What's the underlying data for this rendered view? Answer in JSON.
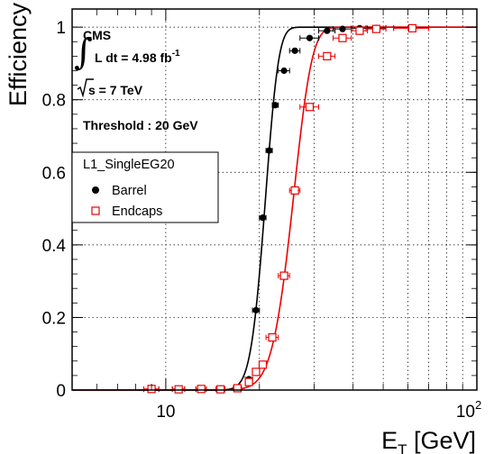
{
  "chart_data": {
    "type": "scatter",
    "xscale": "log",
    "xlim": [
      5,
      100
    ],
    "ylim": [
      0,
      1.05
    ],
    "xlabel_main": "E",
    "xlabel_sub": "T",
    "xlabel_unit": " [GeV]",
    "ylabel": "Efficiency",
    "grid": true,
    "x_ticks": [
      {
        "value": 10,
        "base": "10",
        "exp": ""
      },
      {
        "value": 100,
        "base": "10",
        "exp": "2"
      }
    ],
    "y_ticks": [
      {
        "value": 0,
        "label": "0"
      },
      {
        "value": 0.2,
        "label": "0.2"
      },
      {
        "value": 0.4,
        "label": "0.4"
      },
      {
        "value": 0.6,
        "label": "0.6"
      },
      {
        "value": 0.8,
        "label": "0.8"
      },
      {
        "value": 1,
        "label": "1"
      }
    ],
    "annotations": {
      "experiment": "CMS",
      "lumi_text": "L dt = 4.98 fb",
      "lumi_exp": "-1",
      "energy_text": "s = 7 TeV",
      "threshold": "Threshold : 20 GeV"
    },
    "legend": {
      "title": "L1_SingleEG20",
      "position": "left"
    },
    "series": [
      {
        "name": "Barrel",
        "marker": "filled-circle",
        "color": "#000000",
        "points": [
          {
            "x": 9,
            "y": 0.002,
            "xerr": 0.5
          },
          {
            "x": 11,
            "y": 0.003,
            "xerr": 0.5
          },
          {
            "x": 13,
            "y": 0.002,
            "xerr": 0.5
          },
          {
            "x": 15,
            "y": 0.002,
            "xerr": 0.5
          },
          {
            "x": 17,
            "y": 0.005,
            "xerr": 0.5
          },
          {
            "x": 18.5,
            "y": 0.03,
            "xerr": 0.5
          },
          {
            "x": 19.5,
            "y": 0.22,
            "xerr": 0.5
          },
          {
            "x": 20.5,
            "y": 0.475,
            "xerr": 0.5
          },
          {
            "x": 21.5,
            "y": 0.66,
            "xerr": 0.5
          },
          {
            "x": 22.5,
            "y": 0.785,
            "xerr": 0.5
          },
          {
            "x": 24,
            "y": 0.88,
            "xerr": 1
          },
          {
            "x": 26,
            "y": 0.935,
            "xerr": 1
          },
          {
            "x": 29,
            "y": 0.97,
            "xerr": 2
          },
          {
            "x": 33,
            "y": 0.99,
            "xerr": 2
          },
          {
            "x": 37,
            "y": 0.995,
            "xerr": 2.5
          },
          {
            "x": 42,
            "y": 0.997,
            "xerr": 2.5
          },
          {
            "x": 47.5,
            "y": 0.998,
            "xerr": 3.5
          },
          {
            "x": 62,
            "y": 0.998,
            "xerr": 8
          }
        ],
        "fit": {
          "type": "erf",
          "mu": 20.8,
          "sigma": 1.7
        }
      },
      {
        "name": "Endcaps",
        "marker": "open-square",
        "color": "#ee0000",
        "points": [
          {
            "x": 9,
            "y": 0.003,
            "xerr": 0.5
          },
          {
            "x": 11,
            "y": 0.002,
            "xerr": 0.5
          },
          {
            "x": 13,
            "y": 0.003,
            "xerr": 0.5
          },
          {
            "x": 15,
            "y": 0.002,
            "xerr": 0.5
          },
          {
            "x": 17,
            "y": 0.005,
            "xerr": 0.5
          },
          {
            "x": 18.5,
            "y": 0.022,
            "xerr": 0.5
          },
          {
            "x": 19.5,
            "y": 0.05,
            "xerr": 0.5
          },
          {
            "x": 20.5,
            "y": 0.07,
            "xerr": 0.5
          },
          {
            "x": 22,
            "y": 0.145,
            "xerr": 1
          },
          {
            "x": 24,
            "y": 0.315,
            "xerr": 1
          },
          {
            "x": 26,
            "y": 0.55,
            "xerr": 1
          },
          {
            "x": 29,
            "y": 0.78,
            "xerr": 2
          },
          {
            "x": 33,
            "y": 0.92,
            "xerr": 2
          },
          {
            "x": 37,
            "y": 0.97,
            "xerr": 2.5
          },
          {
            "x": 42,
            "y": 0.99,
            "xerr": 2.5
          },
          {
            "x": 47.5,
            "y": 0.995,
            "xerr": 3.5
          },
          {
            "x": 62,
            "y": 0.997,
            "xerr": 8
          }
        ],
        "fit": {
          "type": "erf",
          "mu": 25.5,
          "sigma": 3.0
        }
      }
    ]
  }
}
